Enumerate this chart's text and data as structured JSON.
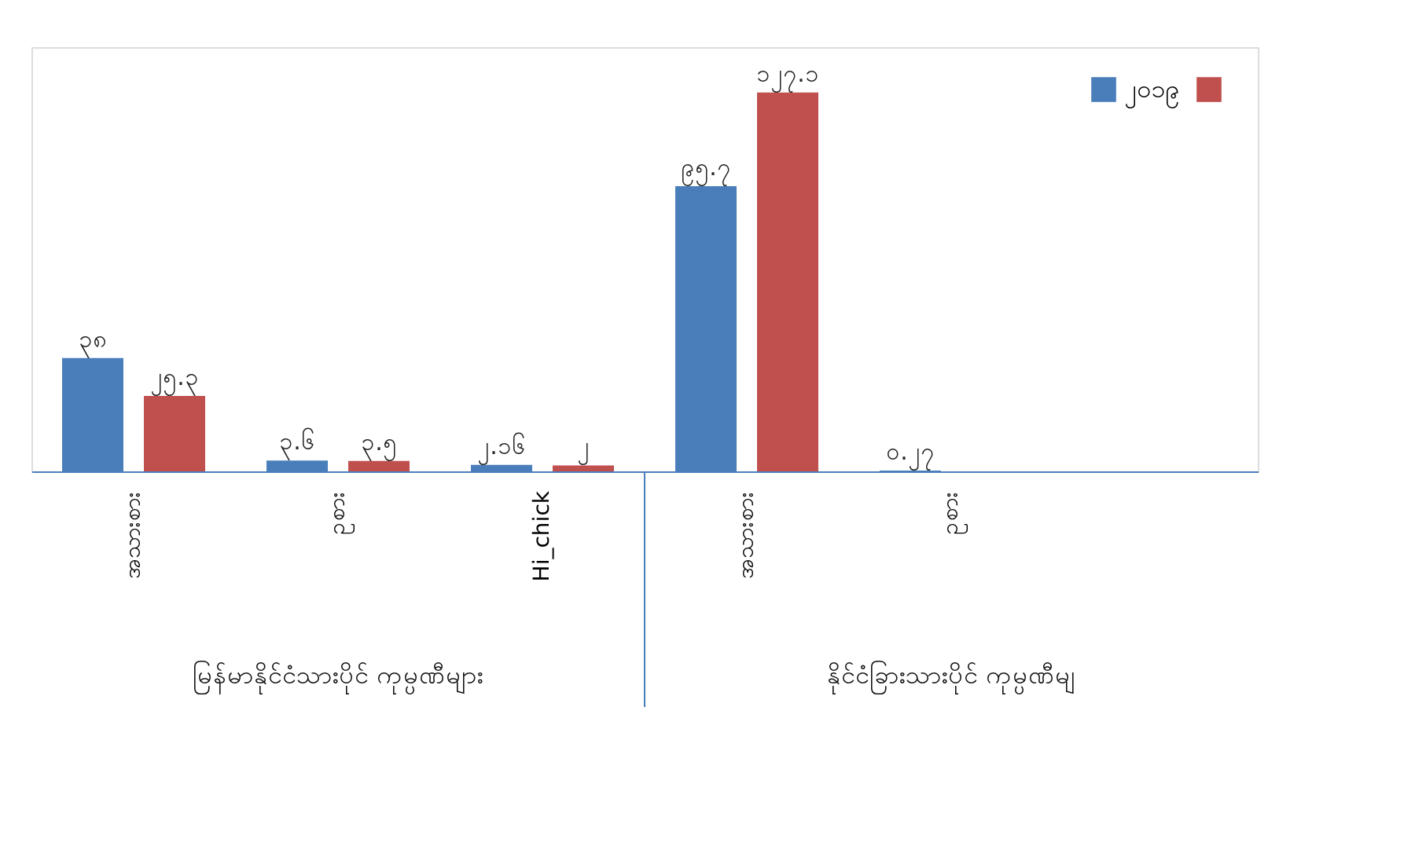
{
  "chart_data": {
    "type": "bar",
    "categories": [
      "အသားစား",
      "ဥစား",
      "Hi_chick",
      "အသားစား",
      "ဥစား",
      null
    ],
    "series": [
      {
        "name": "၂၀၁၉",
        "color": "#4a7ebb",
        "values": [
          38,
          3.6,
          2.16,
          95.7,
          0.27,
          null
        ],
        "value_labels": [
          "၃၈",
          "၃.၆",
          "၂.၁၆",
          "၉၅.၇",
          "၀.၂၇",
          null
        ]
      },
      {
        "color": "#c0504d",
        "values": [
          25.3,
          3.5,
          2,
          127.1,
          null,
          null
        ],
        "value_labels": [
          "၂၅.၃",
          "၃.၅",
          "၂",
          "၁၂၇.၁",
          null,
          null
        ]
      }
    ],
    "annotations": [
      "မြန်မာနိုင်ငံသားပိုင် ကုမ္ပဏီများ",
      "နိုင်ငံခြားသားပိုင် ကုမ္ပဏီမျ"
    ],
    "legend": "top right",
    "grid": false
  }
}
